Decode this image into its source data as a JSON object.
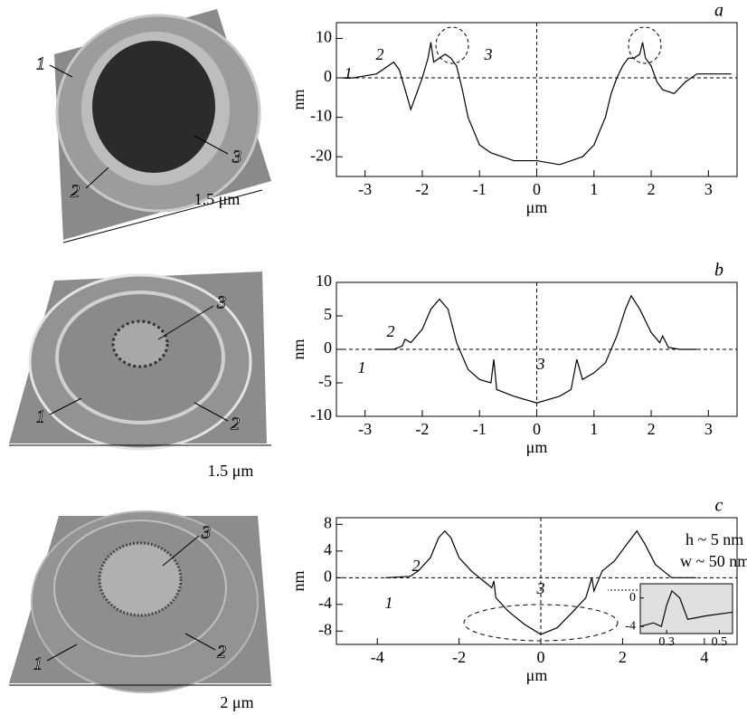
{
  "chart_data": [
    {
      "type": "line",
      "title": "a",
      "xlabel": "μm",
      "ylabel": "nm",
      "color": "#000000",
      "x": [
        -3.4,
        -3.2,
        -3.0,
        -2.8,
        -2.6,
        -2.5,
        -2.4,
        -2.3,
        -2.2,
        -2.1,
        -2.0,
        -1.9,
        -1.85,
        -1.8,
        -1.7,
        -1.6,
        -1.5,
        -1.4,
        -1.3,
        -1.2,
        -1.0,
        -0.8,
        -0.4,
        0.0,
        0.4,
        0.8,
        1.0,
        1.2,
        1.3,
        1.4,
        1.5,
        1.6,
        1.7,
        1.8,
        1.85,
        1.9,
        2.0,
        2.1,
        2.2,
        2.4,
        2.6,
        2.8,
        3.0,
        3.4
      ],
      "values": [
        0,
        0,
        0.5,
        1,
        3,
        4,
        2,
        -3,
        -8,
        -4,
        0,
        5,
        9,
        4,
        5,
        6,
        5,
        3,
        -3,
        -10,
        -17,
        -19,
        -21,
        -21,
        -22,
        -20,
        -17,
        -10,
        -4,
        0,
        3,
        5,
        5,
        6,
        9,
        5,
        3,
        -1,
        -3,
        -4,
        -1,
        1,
        1,
        1
      ],
      "xlim": [
        -3.5,
        3.5
      ],
      "ylim": [
        -25,
        14
      ],
      "xticks": [
        -3,
        -2,
        -1,
        0,
        1,
        2,
        3
      ],
      "yticks": [
        -20,
        -10,
        0,
        10
      ],
      "annotations": [
        "1",
        "2",
        "3"
      ]
    },
    {
      "type": "line",
      "title": "b",
      "xlabel": "μm",
      "ylabel": "nm",
      "color": "#000000",
      "x": [
        -2.8,
        -2.5,
        -2.35,
        -2.3,
        -2.2,
        -2.0,
        -1.85,
        -1.7,
        -1.55,
        -1.4,
        -1.2,
        -1.0,
        -0.8,
        -0.75,
        -0.7,
        -0.4,
        0.0,
        0.4,
        0.6,
        0.7,
        0.8,
        1.0,
        1.2,
        1.4,
        1.55,
        1.65,
        1.8,
        2.0,
        2.15,
        2.2,
        2.3,
        2.5,
        2.8
      ],
      "values": [
        0,
        0,
        0.5,
        1.5,
        1,
        3,
        6,
        7.5,
        6,
        1,
        -3,
        -4.5,
        -5,
        -1.5,
        -6,
        -7,
        -8,
        -7,
        -6,
        -1.5,
        -4.5,
        -3.5,
        -2,
        2,
        6,
        8,
        6,
        2.5,
        1,
        2,
        0.3,
        0,
        0
      ],
      "xlim": [
        -3.5,
        3.5
      ],
      "ylim": [
        -10,
        10
      ],
      "xticks": [
        -3,
        -2,
        -1,
        0,
        1,
        2,
        3
      ],
      "yticks": [
        -10,
        -5,
        0,
        5,
        10
      ],
      "annotations": [
        "1",
        "2",
        "3"
      ]
    },
    {
      "type": "line",
      "title": "c",
      "xlabel": "μm",
      "ylabel": "nm",
      "color": "#000000",
      "x": [
        -3.8,
        -3.2,
        -3.0,
        -2.7,
        -2.5,
        -2.35,
        -2.2,
        -2.0,
        -1.7,
        -1.4,
        -1.2,
        -1.15,
        -1.1,
        -0.8,
        -0.4,
        0.0,
        0.4,
        0.8,
        1.1,
        1.2,
        1.25,
        1.3,
        1.5,
        1.8,
        2.1,
        2.35,
        2.55,
        2.8,
        3.0,
        3.2,
        3.8
      ],
      "values": [
        0,
        0.2,
        1,
        3,
        6,
        7,
        6,
        3,
        1,
        -0.5,
        -1.5,
        -0.5,
        -3,
        -5,
        -7,
        -8.5,
        -7.5,
        -5,
        -3,
        -1,
        0,
        -2,
        1,
        2.5,
        5,
        7,
        5,
        2,
        1,
        0,
        0
      ],
      "xlim": [
        -5,
        4.8
      ],
      "ylim": [
        -10,
        9
      ],
      "xticks": [
        -4,
        -2,
        0,
        2,
        4
      ],
      "yticks": [
        -8,
        -4,
        0,
        4,
        8
      ],
      "annotations": [
        "1",
        "2",
        "3",
        "h ~ 5 nm",
        "w ~ 50 nm"
      ],
      "inset": {
        "x": [
          0.2,
          0.25,
          0.28,
          0.3,
          0.32,
          0.35,
          0.38,
          0.45,
          0.55
        ],
        "values": [
          -4,
          -3.5,
          -4,
          -1,
          1,
          0,
          -3,
          -2.5,
          -2
        ],
        "xlim": [
          0.2,
          0.55
        ],
        "ylim": [
          -5,
          2
        ],
        "xticks": [
          0.3,
          0.5
        ],
        "yticks": [
          0,
          -4
        ]
      }
    }
  ],
  "images": [
    {
      "labels": [
        "1",
        "2",
        "3"
      ],
      "scale": "1.5 μm"
    },
    {
      "labels": [
        "3",
        "1",
        "2"
      ],
      "scale": "1.5 μm"
    },
    {
      "labels": [
        "3",
        "1",
        "2"
      ],
      "scale": "2 μm"
    }
  ]
}
